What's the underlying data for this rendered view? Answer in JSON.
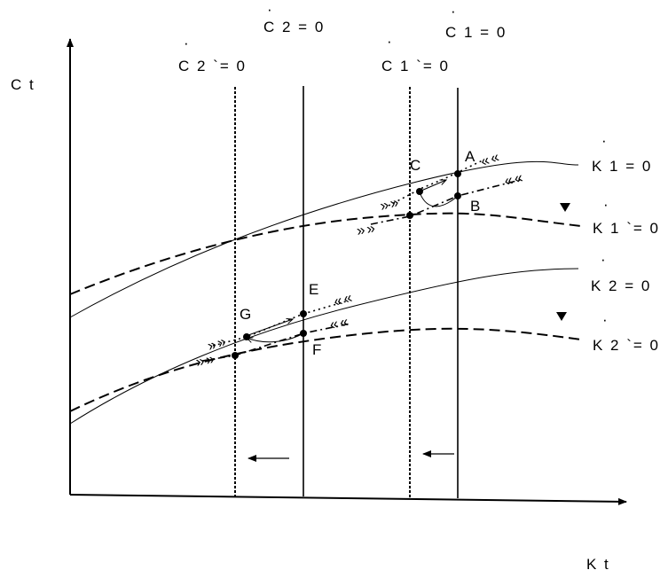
{
  "axes": {
    "y_label": "C t",
    "x_label": "K t"
  },
  "vertical_lines": {
    "c2_prime": "C 2 `= 0",
    "c2": "C 2 = 0",
    "c1_prime": "C 1 `= 0",
    "c1": "C 1 = 0"
  },
  "curves": {
    "k1": "K 1 = 0",
    "k1_prime": "K 1 `= 0",
    "k2": "K 2 = 0",
    "k2_prime": "K 2 `= 0"
  },
  "points": {
    "a": "A",
    "b": "B",
    "c": "C",
    "e": "E",
    "f": "F",
    "g": "G"
  },
  "chevrons": {
    "right": "»»",
    "left": "««"
  },
  "dot_mark": "·"
}
